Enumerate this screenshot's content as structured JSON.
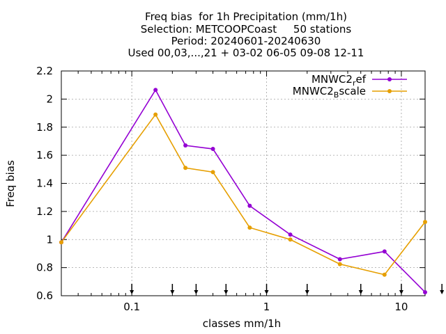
{
  "chart_data": {
    "type": "line",
    "title_lines": [
      "Freq bias  for 1h Precipitation (mm/1h)",
      "Selection: METCOOPCoast     50 stations",
      "Period: 20240601-20240630",
      "Used 00,03,...,21 + 03-02 06-05 09-08 12-11"
    ],
    "xlabel": "classes mm/1h",
    "ylabel": "Freq bias",
    "x_scale": "log",
    "xlim": [
      0.03,
      15
    ],
    "ylim": [
      0.6,
      2.2
    ],
    "x_ticks": [
      0.1,
      1,
      10
    ],
    "x_tick_labels": [
      "0.1",
      "1",
      "10"
    ],
    "y_ticks": [
      0.6,
      0.8,
      1,
      1.2,
      1.4,
      1.6,
      1.8,
      2,
      2.2
    ],
    "y_tick_labels": [
      "0.6",
      "0.8",
      "1",
      "1.2",
      "1.4",
      "1.6",
      "1.8",
      "2",
      "2.2"
    ],
    "grid": true,
    "legend_position": "top-right",
    "threshold_arrows_x": [
      0.1,
      0.2,
      0.3,
      0.5,
      1,
      2,
      5,
      10,
      20
    ],
    "series": [
      {
        "name": "MNWC2_ref",
        "legend_main": "MNWC2",
        "legend_sub": "r",
        "legend_rest": "ef",
        "color": "#9400d3",
        "x": [
          0.03,
          0.15,
          0.25,
          0.4,
          0.75,
          1.5,
          3.5,
          7.5,
          15
        ],
        "y": [
          0.98,
          2.065,
          1.67,
          1.645,
          1.24,
          1.035,
          0.86,
          0.915,
          0.625
        ]
      },
      {
        "name": "MNWC2_Bscale",
        "legend_main": "MNWC2",
        "legend_sub": "B",
        "legend_rest": "scale",
        "color": "#e69f00",
        "x": [
          0.03,
          0.15,
          0.25,
          0.4,
          0.75,
          1.5,
          3.5,
          7.5,
          15
        ],
        "y": [
          0.98,
          1.89,
          1.51,
          1.48,
          1.085,
          1.0,
          0.825,
          0.75,
          1.125
        ]
      }
    ]
  }
}
